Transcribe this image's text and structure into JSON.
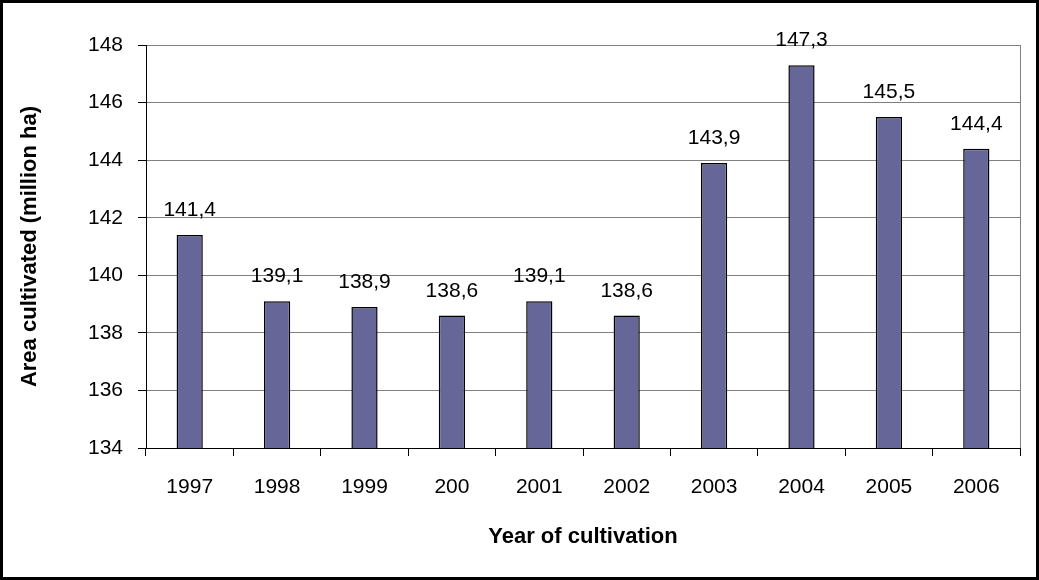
{
  "chart_data": {
    "type": "bar",
    "xlabel": "Year of cultivation",
    "ylabel": "Area cultivated (million ha)",
    "categories": [
      "1997",
      "1998",
      "1999",
      "200",
      "2001",
      "2002",
      "2003",
      "2004",
      "2005",
      "2006"
    ],
    "values": [
      141.4,
      139.1,
      138.9,
      138.6,
      139.1,
      138.6,
      143.9,
      147.3,
      145.5,
      144.4
    ],
    "value_labels": [
      "141,4",
      "139,1",
      "138,9",
      "138,6",
      "139,1",
      "138,6",
      "143,9",
      "147,3",
      "145,5",
      "144,4"
    ],
    "color": "#666699",
    "ylim": [
      134,
      148
    ],
    "yticks": [
      134,
      136,
      138,
      140,
      142,
      144,
      146,
      148
    ],
    "grid": "y"
  }
}
